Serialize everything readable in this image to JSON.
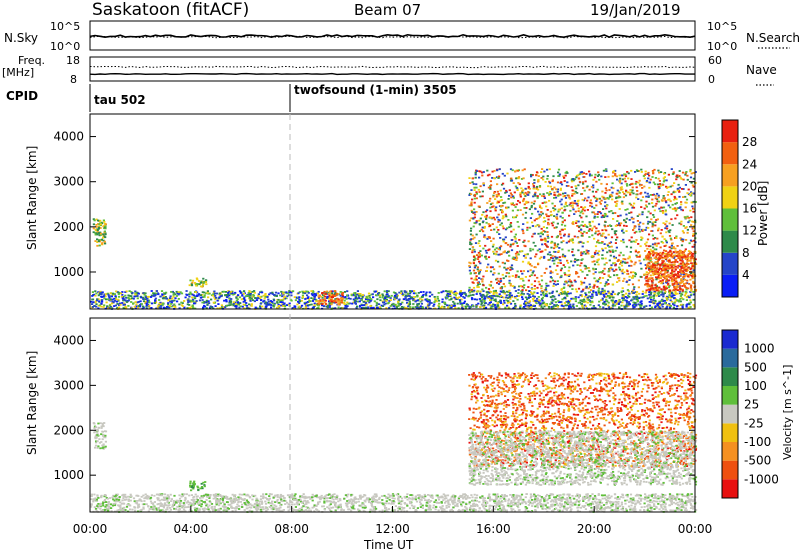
{
  "header": {
    "station": "Saskatoon (fitACF)",
    "beam": "Beam 07",
    "date": "19/Jan/2019"
  },
  "noise_panel": {
    "left_label": "N.Sky",
    "left_ticks": [
      "10^5",
      "10^0"
    ],
    "right_ticks": [
      "10^5",
      "10^0"
    ],
    "right_label": "N.Search"
  },
  "freq_panel": {
    "left_label_line1": "Freq.",
    "left_label_line2": "[MHz]",
    "left_ticks": [
      "18",
      "8"
    ],
    "right_ticks": [
      "60",
      "0"
    ],
    "right_label": "Nave"
  },
  "cpid": {
    "label": "CPID",
    "segments": [
      {
        "start_hour": 0,
        "text": "tau 502"
      },
      {
        "start_hour": 8,
        "text": "twofsound (1-min) 3505"
      }
    ]
  },
  "colors": {
    "power_scale": [
      "#0a1ef5",
      "#2545c8",
      "#2e8a4a",
      "#5fbf3a",
      "#f0d214",
      "#f7a020",
      "#f26010",
      "#e82010"
    ],
    "velocity_scale": [
      "#1a2ad0",
      "#2a6a9c",
      "#2e8a4a",
      "#5fbf3a",
      "#c8c8c0",
      "#f0c010",
      "#f59020",
      "#ee5010",
      "#e81010"
    ]
  },
  "time_axis": {
    "ticks": [
      "00:00",
      "04:00",
      "08:00",
      "12:00",
      "16:00",
      "20:00",
      "00:00"
    ],
    "label": "Time UT"
  },
  "chart_data": [
    {
      "type": "heatmap",
      "title": "",
      "xlabel": "Time UT",
      "ylabel": "Slant Range [km]",
      "xlim": [
        0,
        24
      ],
      "ylim": [
        180,
        4500
      ],
      "yticks": [
        "1000",
        "2000",
        "3000",
        "4000"
      ],
      "colorbar": {
        "label": "Power [dB]",
        "ticks": [
          "4",
          "8",
          "12",
          "16",
          "20",
          "24",
          "28"
        ],
        "range": [
          0,
          30
        ]
      },
      "scatter_regions": [
        {
          "t0": 0.0,
          "t1": 24.0,
          "r0": 200,
          "r1": 600,
          "level": "low-mixed"
        },
        {
          "t0": 0.1,
          "t1": 0.6,
          "r0": 1600,
          "r1": 2200,
          "level": "mid"
        },
        {
          "t0": 3.9,
          "t1": 4.6,
          "r0": 680,
          "r1": 880,
          "level": "mid"
        },
        {
          "t0": 9.0,
          "t1": 10.0,
          "r0": 300,
          "r1": 600,
          "level": "high"
        },
        {
          "t0": 15.0,
          "t1": 24.0,
          "r0": 600,
          "r1": 3300,
          "level": "mid-high"
        },
        {
          "t0": 22.0,
          "t1": 24.0,
          "r0": 600,
          "r1": 1500,
          "level": "high"
        }
      ]
    },
    {
      "type": "heatmap",
      "title": "",
      "xlabel": "Time UT",
      "ylabel": "Slant Range [km]",
      "xlim": [
        0,
        24
      ],
      "ylim": [
        180,
        4500
      ],
      "yticks": [
        "1000",
        "2000",
        "3000",
        "4000"
      ],
      "colorbar": {
        "label": "Velocity [m s^-1]",
        "ticks": [
          "1000",
          "500",
          "100",
          "25",
          "-25",
          "-100",
          "-500",
          "-1000"
        ],
        "range": [
          -1000,
          1000
        ]
      },
      "scatter_regions": [
        {
          "t0": 0.0,
          "t1": 24.0,
          "r0": 200,
          "r1": 600,
          "level": "ground-scatter"
        },
        {
          "t0": 0.1,
          "t1": 0.6,
          "r0": 1600,
          "r1": 2200,
          "level": "ground-scatter"
        },
        {
          "t0": 3.9,
          "t1": 4.6,
          "r0": 680,
          "r1": 880,
          "level": "positive"
        },
        {
          "t0": 15.0,
          "t1": 24.0,
          "r0": 1200,
          "r1": 3300,
          "level": "negative"
        },
        {
          "t0": 15.0,
          "t1": 24.0,
          "r0": 800,
          "r1": 2000,
          "level": "ground-scatter"
        }
      ]
    }
  ]
}
